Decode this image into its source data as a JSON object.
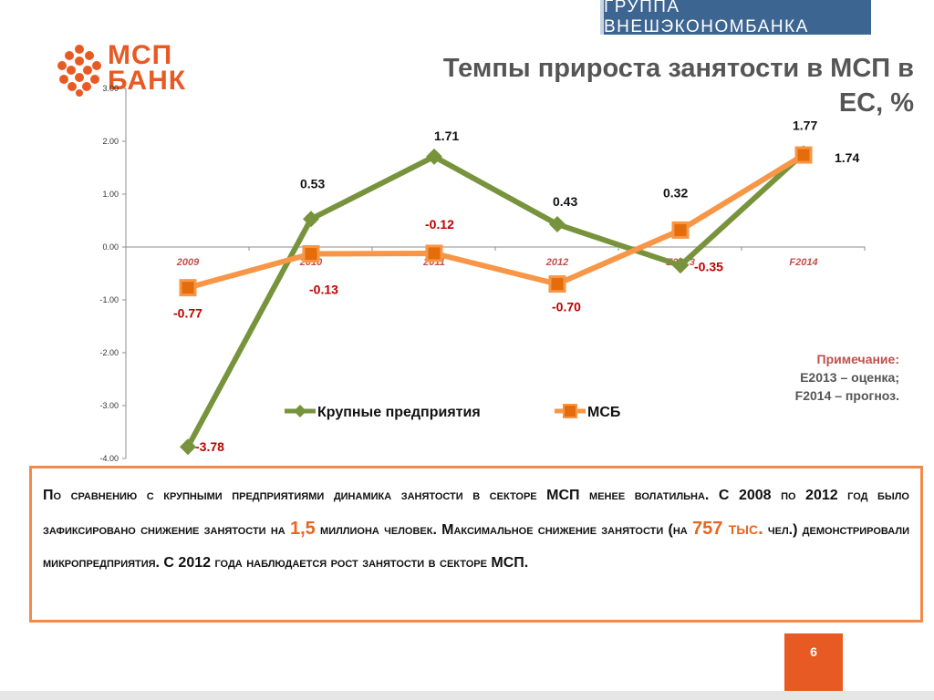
{
  "brand": {
    "group_name": "ГРУППА ВНЕШЭКОНОМБАНКА"
  },
  "logo": {
    "line1": "МСП",
    "line2": "БАНК"
  },
  "title": {
    "line1": "Темпы прироста занятости в МСП в",
    "line2": "ЕС, %"
  },
  "colors": {
    "large": "#77933c",
    "msb": "#f79646",
    "accent": "#e85a23",
    "negative_label": "#c00000",
    "brand_bar": "#3d6591"
  },
  "chart_data": {
    "type": "line",
    "categories": [
      "2009",
      "2010",
      "2011",
      "2012",
      "E2013",
      "F2014"
    ],
    "series": [
      {
        "name": "Крупные предприятия",
        "values": [
          -3.78,
          0.53,
          1.71,
          0.43,
          -0.35,
          1.77
        ],
        "color": "#77933c",
        "marker": "diamond"
      },
      {
        "name": "МСБ",
        "values": [
          -0.77,
          -0.13,
          -0.12,
          -0.7,
          0.32,
          1.74
        ],
        "color": "#f79646",
        "marker": "square"
      }
    ],
    "data_labels": {
      "Крупные предприятия": [
        "-3.78",
        "0.53",
        "1.71",
        "0.43",
        "-0.35",
        "1.77"
      ],
      "МСБ": [
        "-0.77",
        "-0.13",
        "-0.12",
        "-0.70",
        "0.32",
        "1.74"
      ]
    },
    "yticks": [
      "3.00",
      "2.00",
      "1.00",
      "0.00",
      "-1.00",
      "-2.00",
      "-3.00",
      "-4.00"
    ],
    "ylim": [
      -4,
      3
    ],
    "legend_position": "bottom",
    "grid": false
  },
  "note": {
    "title": "Примечание:",
    "line1": "E2013 – оценка;",
    "line2": "F2014 – прогноз."
  },
  "summary": {
    "part1": "По сравнению с крупными предприятиями динамика занятости в секторе МСП менее волатильна. С 2008 по 2012 год было зафиксировано снижение занятости на ",
    "highlight1": "1,5",
    "part2": " миллиона человек. Максимальное снижение занятости (на ",
    "highlight2": "757 тыс.",
    "part3": " чел.) демонстрировали микропредприятия. С 2012 года наблюдается рост занятости в секторе МСП."
  },
  "page_number": "6"
}
